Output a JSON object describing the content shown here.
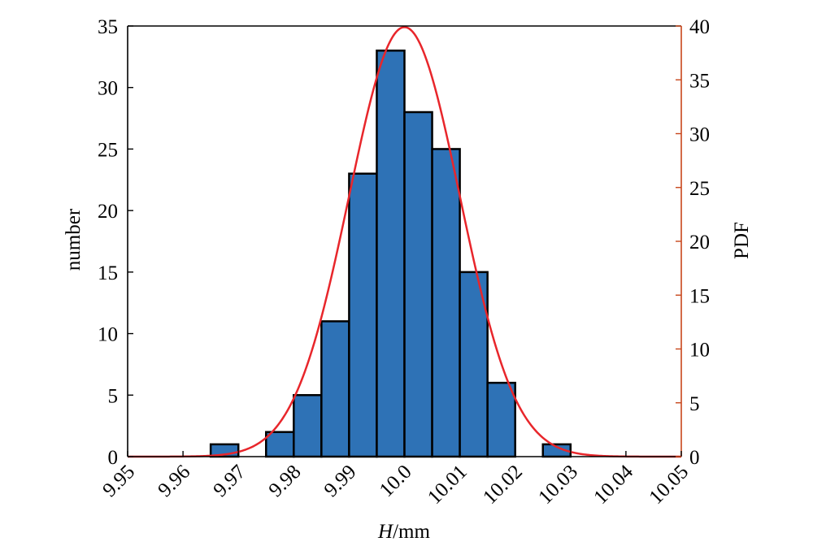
{
  "chart_data": {
    "type": "bar",
    "title": "",
    "xlabel_italic": "H",
    "xlabel_unit": "/mm",
    "ylabel": "number",
    "y2label": "PDF",
    "xlim": [
      9.95,
      10.05
    ],
    "ylim": [
      0,
      35
    ],
    "y2lim": [
      0,
      40
    ],
    "xticks": [
      "9.95",
      "9.96",
      "9.97",
      "9.98",
      "9.99",
      "10.0",
      "10.01",
      "10.02",
      "10.03",
      "10.04",
      "10.05"
    ],
    "yticks": [
      "0",
      "5",
      "10",
      "15",
      "20",
      "25",
      "30",
      "35"
    ],
    "y2ticks": [
      "0",
      "5",
      "10",
      "15",
      "20",
      "25",
      "30",
      "35",
      "40"
    ],
    "bins": [
      {
        "x0": 9.965,
        "x1": 9.97,
        "count": 1
      },
      {
        "x0": 9.975,
        "x1": 9.98,
        "count": 2
      },
      {
        "x0": 9.98,
        "x1": 9.985,
        "count": 5
      },
      {
        "x0": 9.985,
        "x1": 9.99,
        "count": 11
      },
      {
        "x0": 9.99,
        "x1": 9.995,
        "count": 23
      },
      {
        "x0": 9.995,
        "x1": 10.0,
        "count": 33
      },
      {
        "x0": 10.0,
        "x1": 10.005,
        "count": 28
      },
      {
        "x0": 10.005,
        "x1": 10.01,
        "count": 25
      },
      {
        "x0": 10.01,
        "x1": 10.015,
        "count": 15
      },
      {
        "x0": 10.015,
        "x1": 10.02,
        "count": 6
      },
      {
        "x0": 10.025,
        "x1": 10.03,
        "count": 1
      }
    ],
    "pdf_curve": {
      "mean": 10.0,
      "std": 0.01,
      "axis": "right"
    },
    "colors": {
      "bar_fill": "#2e72b6",
      "bar_edge": "#000000",
      "pdf_line": "#e8262b",
      "right_axis": "#c8461b",
      "left_axis": "#000000"
    },
    "grid": false
  }
}
